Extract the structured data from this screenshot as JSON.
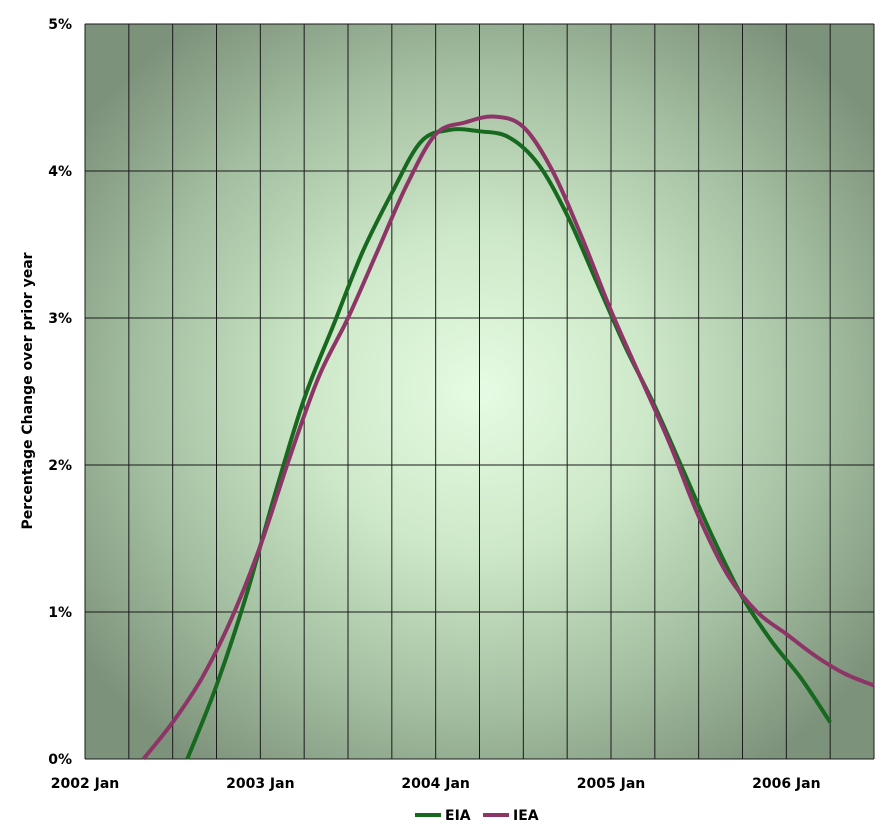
{
  "chart_data": {
    "type": "line",
    "title": "",
    "xlabel": "",
    "ylabel": "Percentage Change over prior year",
    "x_tick_labels": [
      "2002 Jan",
      "2003 Jan",
      "2004 Jan",
      "2005 Jan",
      "2006 Jan"
    ],
    "y_tick_labels": [
      "0%",
      "1%",
      "2%",
      "3%",
      "4%",
      "5%"
    ],
    "xlim": [
      "2002-01",
      "2006-07"
    ],
    "ylim": [
      0,
      5
    ],
    "y_unit": "%",
    "grid": true,
    "legend_position": "bottom-center",
    "background": "radial gradient, light green center to dark green-gray edges",
    "series": [
      {
        "name": "EIA",
        "color": "#17691f",
        "points": [
          [
            "2002-08",
            0.0
          ],
          [
            "2002-10",
            0.5
          ],
          [
            "2002-12",
            1.1
          ],
          [
            "2003-02",
            1.8
          ],
          [
            "2003-04",
            2.45
          ],
          [
            "2003-06",
            2.95
          ],
          [
            "2003-08",
            3.45
          ],
          [
            "2003-10",
            3.85
          ],
          [
            "2003-12",
            4.2
          ],
          [
            "2004-02",
            4.28
          ],
          [
            "2004-04",
            4.27
          ],
          [
            "2004-06",
            4.23
          ],
          [
            "2004-08",
            4.05
          ],
          [
            "2004-10",
            3.7
          ],
          [
            "2004-12",
            3.25
          ],
          [
            "2005-02",
            2.8
          ],
          [
            "2005-04",
            2.4
          ],
          [
            "2005-06",
            1.95
          ],
          [
            "2005-08",
            1.5
          ],
          [
            "2005-10",
            1.1
          ],
          [
            "2005-12",
            0.8
          ],
          [
            "2006-02",
            0.55
          ],
          [
            "2006-04",
            0.25
          ]
        ]
      },
      {
        "name": "IEA",
        "color": "#8e3568",
        "points": [
          [
            "2002-05",
            0.0
          ],
          [
            "2002-07",
            0.25
          ],
          [
            "2002-09",
            0.55
          ],
          [
            "2002-11",
            0.95
          ],
          [
            "2003-01",
            1.45
          ],
          [
            "2003-03",
            2.05
          ],
          [
            "2003-05",
            2.6
          ],
          [
            "2003-07",
            3.0
          ],
          [
            "2003-09",
            3.45
          ],
          [
            "2003-11",
            3.9
          ],
          [
            "2004-01",
            4.25
          ],
          [
            "2004-03",
            4.33
          ],
          [
            "2004-05",
            4.37
          ],
          [
            "2004-07",
            4.3
          ],
          [
            "2004-09",
            4.0
          ],
          [
            "2004-11",
            3.55
          ],
          [
            "2005-01",
            3.05
          ],
          [
            "2005-03",
            2.6
          ],
          [
            "2005-05",
            2.15
          ],
          [
            "2005-07",
            1.65
          ],
          [
            "2005-09",
            1.25
          ],
          [
            "2005-11",
            1.0
          ],
          [
            "2006-01",
            0.85
          ],
          [
            "2006-03",
            0.7
          ],
          [
            "2006-05",
            0.58
          ],
          [
            "2006-07",
            0.5
          ]
        ]
      }
    ]
  }
}
